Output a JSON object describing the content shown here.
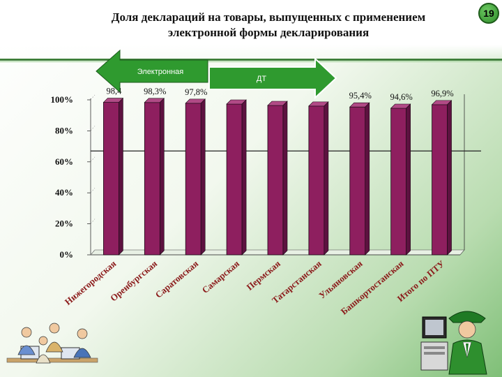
{
  "page": {
    "number": "19"
  },
  "slide": {
    "title_line1": "Доля деклараций на товары, выпущенных с применением",
    "title_line2": "электронной формы декларирования"
  },
  "callouts": {
    "left_arrow": "Электронная",
    "right_arrow": "ДТ"
  },
  "colors": {
    "bar": "#8e1f5f",
    "bar_edge": "#1a0a14",
    "arrow": "#2f9a2f",
    "accent": "#3f7f3a"
  },
  "chart_data": {
    "type": "bar",
    "categories": [
      "Нижегородская",
      "Оренбургская",
      "Саратовская",
      "Самарская",
      "Пермская",
      "Татарстанская",
      "Ульяновская",
      "Башкортостанская",
      "Итого по ПТУ"
    ],
    "values": [
      98.4,
      98.3,
      97.8,
      97.3,
      96.4,
      96.0,
      95.4,
      94.6,
      96.9
    ],
    "data_labels": [
      "98,4",
      "98,3%",
      "97,8%",
      "",
      "",
      "",
      "95,4%",
      "94,6%",
      "96,9%"
    ],
    "ylim": [
      0,
      100
    ],
    "yticks": [
      "0%",
      "20%",
      "40%",
      "60%",
      "80%",
      "100%"
    ],
    "reference_line": 67,
    "grid": false
  }
}
